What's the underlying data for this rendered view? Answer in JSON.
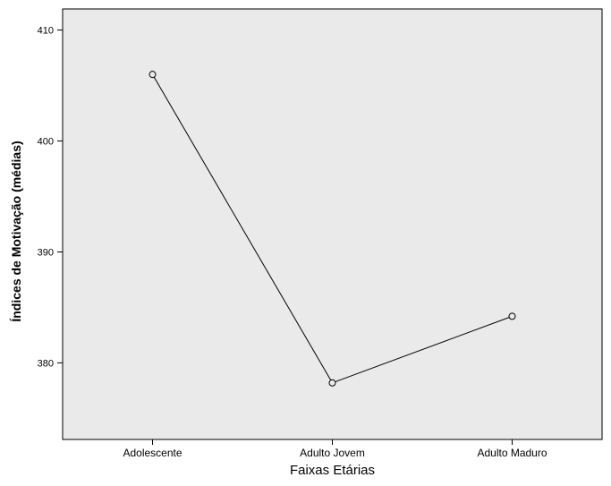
{
  "chart_data": {
    "type": "line",
    "title": "",
    "xlabel": "Faixas Etárias",
    "ylabel": "Índices de Motivação (médias)",
    "categories": [
      "Adolescente",
      "Adulto Jovem",
      "Adulto Maduro"
    ],
    "series": [
      {
        "values": [
          406.0,
          378.2,
          384.2
        ]
      }
    ],
    "ylim": [
      373.1,
      411.9
    ],
    "yticks": [
      380,
      390,
      400,
      410
    ],
    "grid": false,
    "legend": "none",
    "colors": {
      "plot_background": "#eaeaea",
      "line": "#000000",
      "marker_fill": "#eaeaea",
      "frame": "#000000"
    }
  }
}
